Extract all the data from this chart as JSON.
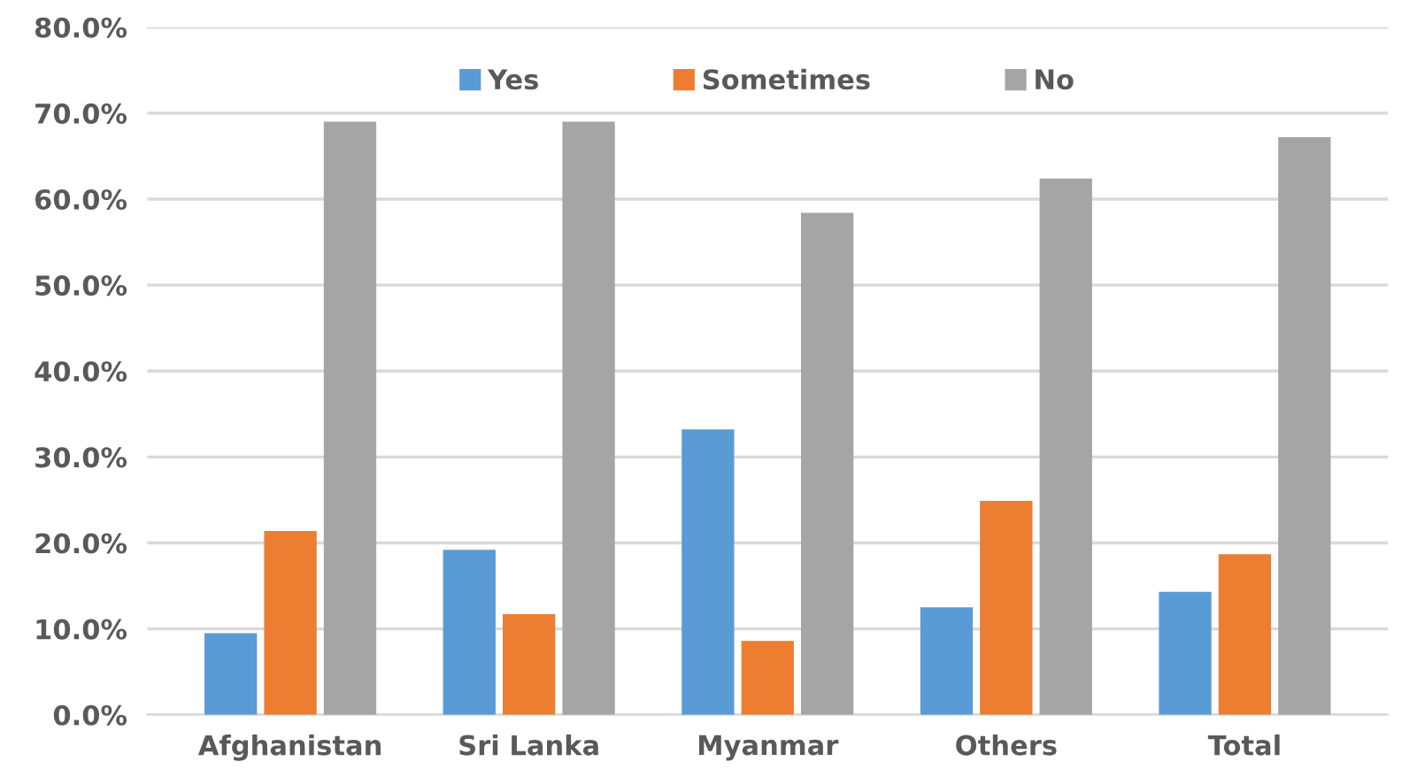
{
  "chart_data": {
    "type": "bar",
    "categories": [
      "Afghanistan",
      "Sri Lanka",
      "Myanmar",
      "Others",
      "Total"
    ],
    "series": [
      {
        "name": "Yes",
        "color": "#5b9bd5",
        "values": [
          9.5,
          19.2,
          33.2,
          12.5,
          14.3
        ]
      },
      {
        "name": "Sometimes",
        "color": "#ed7d31",
        "values": [
          21.4,
          11.7,
          8.6,
          24.9,
          18.7
        ]
      },
      {
        "name": "No",
        "color": "#a5a5a5",
        "values": [
          69.0,
          69.0,
          58.4,
          62.4,
          67.2
        ]
      }
    ],
    "ylim": [
      0,
      80
    ],
    "yticks": [
      {
        "value": 0,
        "label": "0.0%"
      },
      {
        "value": 10,
        "label": "10.0%"
      },
      {
        "value": 20,
        "label": "20.0%"
      },
      {
        "value": 30,
        "label": "30.0%"
      },
      {
        "value": 40,
        "label": "40.0%"
      },
      {
        "value": 50,
        "label": "50.0%"
      },
      {
        "value": 60,
        "label": "60.0%"
      },
      {
        "value": 70,
        "label": "70.0%"
      },
      {
        "value": 80,
        "label": "80.0%"
      }
    ],
    "grid": "y",
    "legend": "top"
  }
}
